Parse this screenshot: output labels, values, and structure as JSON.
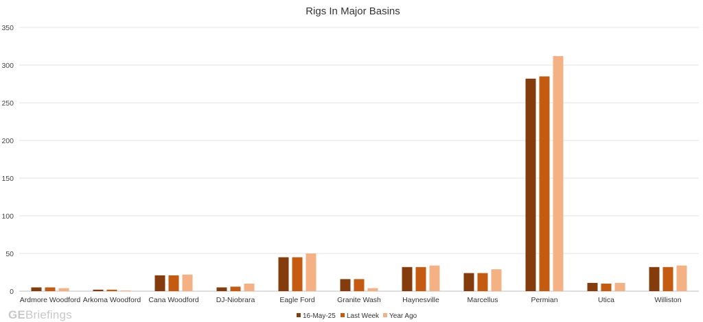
{
  "chart_data": {
    "type": "bar",
    "title": "Rigs In Major Basins",
    "categories": [
      "Ardmore Woodford",
      "Arkoma Woodford",
      "Cana Woodford",
      "DJ-Niobrara",
      "Eagle Ford",
      "Granite Wash",
      "Haynesville",
      "Marcellus",
      "Permian",
      "Utica",
      "Williston"
    ],
    "series": [
      {
        "name": "16-May-25",
        "color": "#843C0C",
        "values": [
          5,
          2,
          21,
          5,
          45,
          16,
          32,
          24,
          282,
          11,
          32
        ]
      },
      {
        "name": "Last Week",
        "color": "#C55A11",
        "values": [
          5,
          2,
          21,
          6,
          45,
          16,
          32,
          24,
          285,
          10,
          32
        ]
      },
      {
        "name": "Year Ago",
        "color": "#F4B183",
        "values": [
          4,
          1,
          22,
          10,
          50,
          4,
          34,
          29,
          312,
          11,
          34
        ]
      }
    ],
    "ylim": [
      0,
      350
    ],
    "yticks": [
      0,
      50,
      100,
      150,
      200,
      250,
      300,
      350
    ],
    "grid": true,
    "legend_position": "bottom"
  },
  "watermark": {
    "prefix": "GE",
    "suffix": "Briefings"
  }
}
